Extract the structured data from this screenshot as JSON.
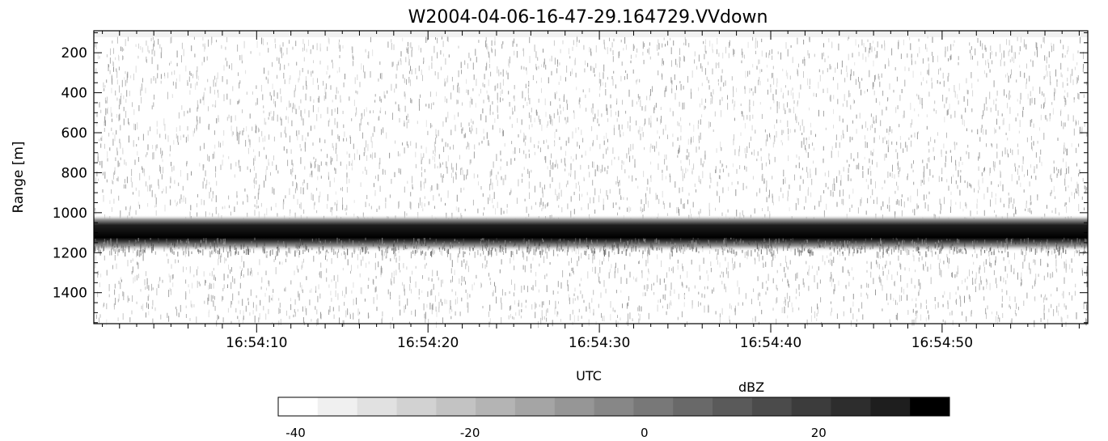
{
  "chart_data": {
    "type": "heatmap",
    "title": "W2004-04-06-16-47-29.164729.VVdown",
    "xlabel": "UTC",
    "ylabel": "Range [m]",
    "x_tick_labels": [
      "16:54:10",
      "16:54:20",
      "16:54:30",
      "16:54:40",
      "16:54:50"
    ],
    "x_tick_seconds": [
      10,
      20,
      30,
      40,
      50
    ],
    "xlim_seconds": [
      0.5,
      58.5
    ],
    "y_ticks": [
      200,
      400,
      600,
      800,
      1000,
      1200,
      1400
    ],
    "y_tick_labels": [
      "200",
      "400",
      "600",
      "800",
      "1000",
      "1200",
      "1400"
    ],
    "ylim": [
      90,
      1555
    ],
    "y_inverted": true,
    "band": {
      "center_range_m": 1080,
      "core_half_width_m": 45,
      "lower_tail_m": 70,
      "peak_dbz": 34
    },
    "background_dbz": -42,
    "colorbar": {
      "label": "dBZ",
      "range": [
        -42,
        35
      ],
      "ticks": [
        -40,
        -20,
        0,
        20
      ],
      "tick_labels": [
        "-40",
        "-20",
        "0",
        "20"
      ],
      "colors": [
        "#ffffff",
        "#f0f0f0",
        "#e1e1e1",
        "#d2d2d2",
        "#c3c3c3",
        "#b4b4b4",
        "#a5a5a5",
        "#969696",
        "#878787",
        "#787878",
        "#696969",
        "#5a5a5a",
        "#4b4b4b",
        "#3c3c3c",
        "#2d2d2d",
        "#1e1e1e",
        "#000000"
      ]
    }
  }
}
